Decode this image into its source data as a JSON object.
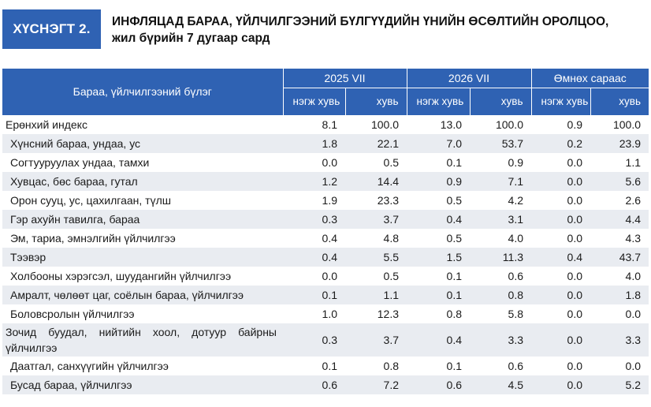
{
  "figure": {
    "label": "ХҮСНЭГТ 2.",
    "title_line1": "ИНФЛЯЦАД БАРАА, ҮЙЛЧИЛГЭЭНИЙ БҮЛГҮҮДИЙН ҮНИЙН ӨСӨЛТИЙН ОРОЛЦОО,",
    "title_line2": "жил бүрийн 7 дугаар сард"
  },
  "colors": {
    "header_blue": "#2f62b3",
    "row_shade": "#e9ecf1"
  },
  "table": {
    "category_header": "Бараа, үйлчилгээний бүлэг",
    "groups": [
      "2025 VII",
      "2026 VII",
      "Өмнөх сараас"
    ],
    "subheaders": [
      "нэгж хувь",
      "хувь",
      "нэгж хувь",
      "хувь",
      "нэгж хувь",
      "хувь"
    ],
    "rows": [
      {
        "name": "Ерөнхий индекс",
        "values": [
          "8.1",
          "100.0",
          "13.0",
          "100.0",
          "0.9",
          "100.0"
        ]
      },
      {
        "name": "Хүнсний бараа, ундаа, ус",
        "values": [
          "1.8",
          "22.1",
          "7.0",
          "53.7",
          "0.2",
          "23.9"
        ]
      },
      {
        "name": "Согтууруулах ундаа, тамхи",
        "values": [
          "0.0",
          "0.5",
          "0.1",
          "0.9",
          "0.0",
          "1.1"
        ]
      },
      {
        "name": "Хувцас, бөс бараа, гутал",
        "values": [
          "1.2",
          "14.4",
          "0.9",
          "7.1",
          "0.0",
          "5.6"
        ]
      },
      {
        "name": "Орон сууц, ус, цахилгаан, түлш",
        "values": [
          "1.9",
          "23.3",
          "0.5",
          "4.2",
          "0.0",
          "2.6"
        ]
      },
      {
        "name": "Гэр ахуйн тавилга, бараа",
        "values": [
          "0.3",
          "3.7",
          "0.4",
          "3.1",
          "0.0",
          "4.4"
        ]
      },
      {
        "name": "Эм, тариа, эмнэлгийн үйлчилгээ",
        "values": [
          "0.4",
          "4.8",
          "0.5",
          "4.0",
          "0.0",
          "4.3"
        ]
      },
      {
        "name": "Тээвэр",
        "values": [
          "0.4",
          "5.5",
          "1.5",
          "11.3",
          "0.4",
          "43.7"
        ]
      },
      {
        "name": "Холбооны хэрэгсэл, шуудангийн үйлчилгээ",
        "values": [
          "0.0",
          "0.5",
          "0.1",
          "0.6",
          "0.0",
          "4.0"
        ]
      },
      {
        "name": "Амралт, чөлөөт цаг, соёлын бараа, үйлчилгээ",
        "values": [
          "0.1",
          "1.1",
          "0.1",
          "0.8",
          "0.0",
          "1.8"
        ]
      },
      {
        "name": "Боловсролын үйлчилгээ",
        "values": [
          "1.0",
          "12.3",
          "0.8",
          "5.8",
          "0.0",
          "0.0"
        ]
      },
      {
        "name": "Зочид буудал, нийтийн хоол, дотуур байрны үйлчилгээ",
        "values": [
          "0.3",
          "3.7",
          "0.4",
          "3.3",
          "0.0",
          "3.3"
        ]
      },
      {
        "name": "Даатгал, санхүүгийн үйлчилгээ",
        "values": [
          "0.1",
          "0.8",
          "0.1",
          "0.6",
          "0.0",
          "0.0"
        ]
      },
      {
        "name": "Бусад бараа, үйлчилгээ",
        "values": [
          "0.6",
          "7.2",
          "0.6",
          "4.5",
          "0.0",
          "5.2"
        ]
      }
    ]
  }
}
